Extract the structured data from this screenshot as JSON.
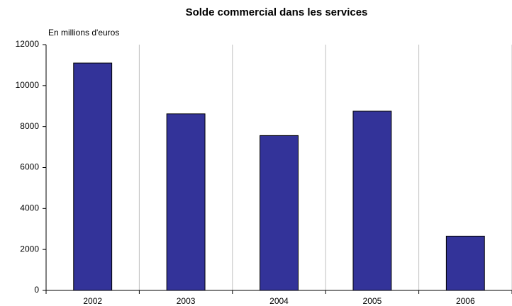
{
  "chart_data": {
    "type": "bar",
    "title": "Solde commercial dans les services",
    "y_label": "En millions d'euros",
    "categories": [
      "2002",
      "2003",
      "2004",
      "2005",
      "2006"
    ],
    "values": [
      11100,
      8620,
      7560,
      8750,
      2650
    ],
    "color": "#333399",
    "ylim": [
      0,
      12000
    ],
    "yticks": [
      0,
      2000,
      4000,
      6000,
      8000,
      10000,
      12000
    ],
    "grid": true
  }
}
